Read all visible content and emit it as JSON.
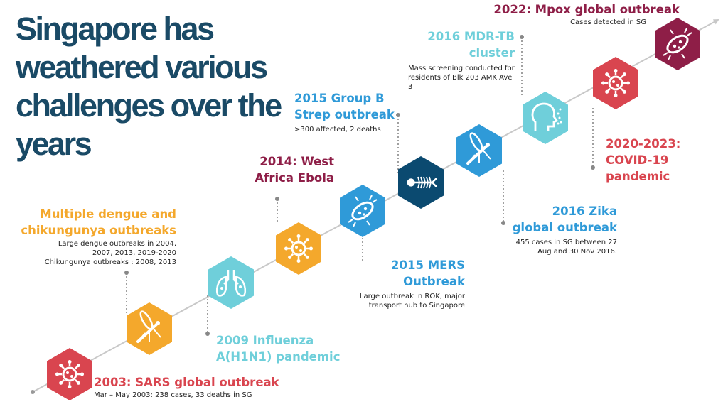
{
  "title": "Singapore has weathered various challenges over the years",
  "colors": {
    "title": "#1a4a66",
    "red": "#d9454f",
    "orange": "#f4a82c",
    "light_teal": "#6fcfda",
    "blue": "#2f9ad8",
    "navy": "#0b4a70",
    "maroon": "#8e1e47",
    "line": "#c8c8c8"
  },
  "events": [
    {
      "id": "sars",
      "heading": "2003: SARS global outbreak",
      "detail": "Mar – May 2003: 238 cases, 33 deaths in SG",
      "color": "#d9454f",
      "icon": "virus-icon"
    },
    {
      "id": "dengue",
      "heading": "Multiple dengue and chikungunya outbreaks",
      "detail_lines": [
        "Large dengue outbreaks in 2004,",
        "2007, 2013, 2019-2020",
        "Chikungunya outbreaks : 2008, 2013"
      ],
      "color": "#f4a82c",
      "icon": "mosquito-icon"
    },
    {
      "id": "h1n1",
      "heading": "2009 Influenza A(H1N1) pandemic",
      "detail": "",
      "color": "#6fcfda",
      "icon": "lungs-icon"
    },
    {
      "id": "ebola",
      "heading": "2014: West Africa Ebola",
      "detail": "",
      "color": "#f4a82c",
      "icon": "virus-icon"
    },
    {
      "id": "mers",
      "heading": "2015 MERS Outbreak",
      "detail": "Large outbreak in ROK, major transport hub to Singapore",
      "color": "#2f9ad8",
      "icon": "bacteria-icon"
    },
    {
      "id": "gbs",
      "heading": "2015 Group B Strep outbreak",
      "detail": ">300 affected, 2 deaths",
      "color": "#0b4a70",
      "icon": "fish-bone-icon"
    },
    {
      "id": "zika",
      "heading": "2016 Zika global outbreak",
      "detail": "455 cases in SG between 27 Aug and 30 Nov 2016.",
      "color": "#2f9ad8",
      "icon": "mosquito-icon"
    },
    {
      "id": "mdrtb",
      "heading": "2016 MDR-TB cluster",
      "detail": "Mass screening conducted for residents of Blk 203 AMK Ave 3",
      "color": "#6fcfda",
      "icon": "cough-head-icon"
    },
    {
      "id": "covid",
      "heading": "2020-2023: COVID-19 pandemic",
      "detail": "",
      "color": "#d9454f",
      "icon": "virus-icon"
    },
    {
      "id": "mpox",
      "heading": "2022: Mpox global outbreak",
      "detail": "Cases detected in SG",
      "color": "#8e1e47",
      "icon": "bacteria-icon"
    }
  ]
}
